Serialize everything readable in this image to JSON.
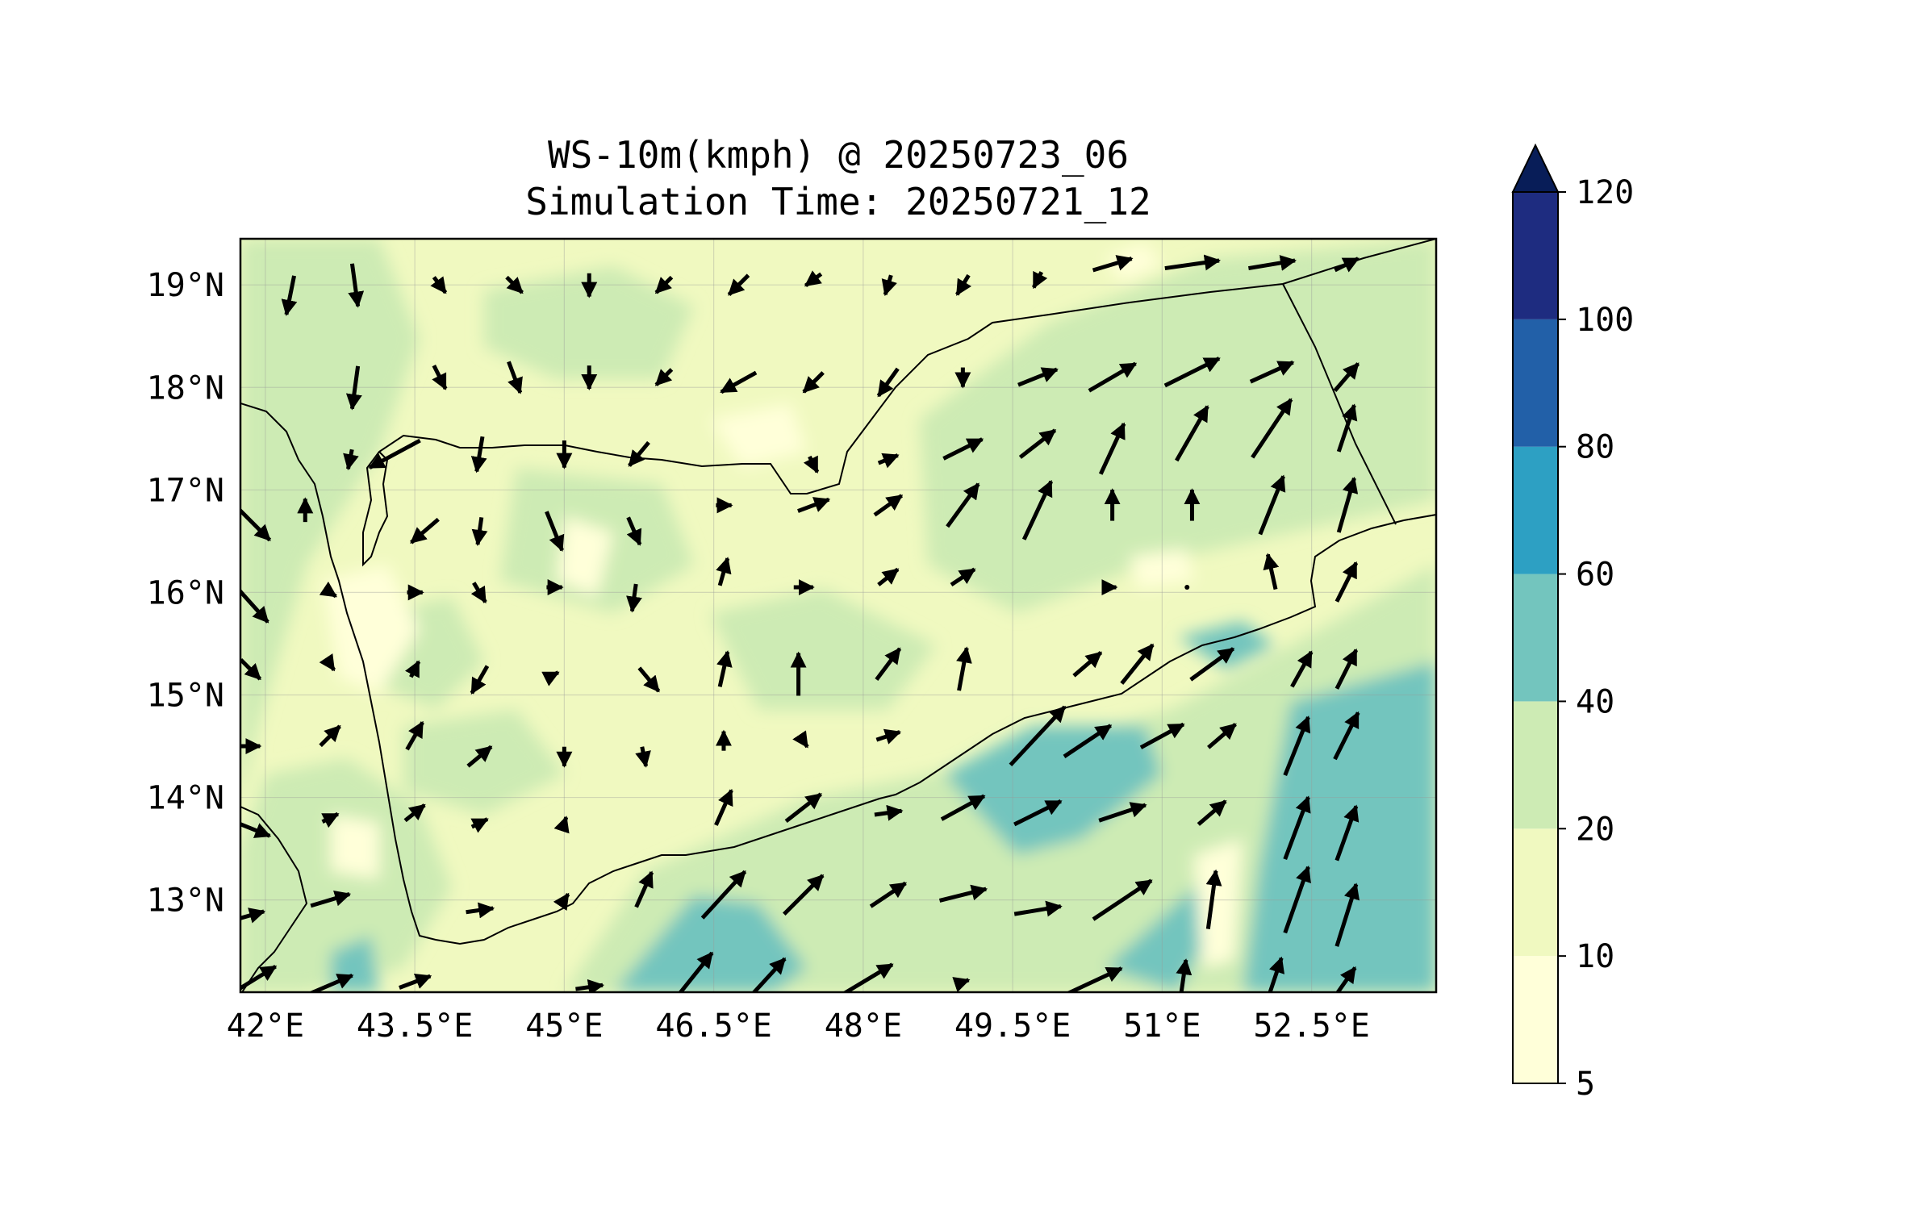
{
  "title": {
    "line1": "WS-10m(kmph) @ 20250723_06",
    "line2": "Simulation Time: 20250721_12"
  },
  "map": {
    "lon_range": [
      41.75,
      53.75
    ],
    "lat_range": [
      12.1,
      19.45
    ],
    "lon_ticks": [
      {
        "v": 42.0,
        "label": "42°E"
      },
      {
        "v": 43.5,
        "label": "43.5°E"
      },
      {
        "v": 45.0,
        "label": "45°E"
      },
      {
        "v": 46.5,
        "label": "46.5°E"
      },
      {
        "v": 48.0,
        "label": "48°E"
      },
      {
        "v": 49.5,
        "label": "49.5°E"
      },
      {
        "v": 51.0,
        "label": "51°E"
      },
      {
        "v": 52.5,
        "label": "52.5°E"
      }
    ],
    "lat_ticks": [
      {
        "v": 19,
        "label": "19°N"
      },
      {
        "v": 18,
        "label": "18°N"
      },
      {
        "v": 17,
        "label": "17°N"
      },
      {
        "v": 16,
        "label": "16°N"
      },
      {
        "v": 15,
        "label": "15°N"
      },
      {
        "v": 14,
        "label": "14°N"
      },
      {
        "v": 13,
        "label": "13°N"
      }
    ],
    "grid": true
  },
  "colorbar": {
    "levels": [
      {
        "from": 5,
        "to": 10,
        "color": "#ffffd9"
      },
      {
        "from": 10,
        "to": 20,
        "color": "#f0f9c0"
      },
      {
        "from": 20,
        "to": 40,
        "color": "#cdebb4"
      },
      {
        "from": 40,
        "to": 60,
        "color": "#73c5be"
      },
      {
        "from": 60,
        "to": 80,
        "color": "#2da0c3"
      },
      {
        "from": 80,
        "to": 100,
        "color": "#2260a8"
      },
      {
        "from": 100,
        "to": 120,
        "color": "#1e2c80"
      }
    ],
    "over_color": "#081d58",
    "ticks": [
      {
        "v": 5,
        "label": "5"
      },
      {
        "v": 10,
        "label": "10"
      },
      {
        "v": 20,
        "label": "20"
      },
      {
        "v": 40,
        "label": "40"
      },
      {
        "v": 60,
        "label": "60"
      },
      {
        "v": 80,
        "label": "80"
      },
      {
        "v": 100,
        "label": "100"
      },
      {
        "v": 120,
        "label": "120"
      }
    ],
    "extend": "max"
  },
  "chart_data": {
    "type": "heatmap",
    "variable": "WS-10m(kmph)",
    "description_levels": [
      5,
      10,
      20,
      40,
      60,
      80,
      100,
      120
    ],
    "wind_vectors": [
      {
        "lon": 42.25,
        "lat": 18.9,
        "u": -4,
        "v": -20
      },
      {
        "lon": 42.9,
        "lat": 19.0,
        "u": 3,
        "v": -22
      },
      {
        "lon": 43.75,
        "lat": 19.0,
        "u": 6,
        "v": -8
      },
      {
        "lon": 44.5,
        "lat": 19.0,
        "u": 8,
        "v": -8
      },
      {
        "lon": 45.25,
        "lat": 19.0,
        "u": 0,
        "v": -12
      },
      {
        "lon": 46.0,
        "lat": 19.0,
        "u": -8,
        "v": -8
      },
      {
        "lon": 46.75,
        "lat": 19.0,
        "u": -10,
        "v": -10
      },
      {
        "lon": 47.5,
        "lat": 19.05,
        "u": -8,
        "v": -6
      },
      {
        "lon": 48.25,
        "lat": 19.0,
        "u": -3,
        "v": -10
      },
      {
        "lon": 49.0,
        "lat": 19.0,
        "u": -6,
        "v": -10
      },
      {
        "lon": 49.75,
        "lat": 19.05,
        "u": -4,
        "v": -8
      },
      {
        "lon": 50.5,
        "lat": 19.2,
        "u": 20,
        "v": 6
      },
      {
        "lon": 51.3,
        "lat": 19.2,
        "u": 28,
        "v": 4
      },
      {
        "lon": 52.1,
        "lat": 19.2,
        "u": 24,
        "v": 4
      },
      {
        "lon": 52.85,
        "lat": 19.2,
        "u": 12,
        "v": 6
      },
      {
        "lon": 42.9,
        "lat": 18.0,
        "u": -3,
        "v": -22
      },
      {
        "lon": 43.75,
        "lat": 18.1,
        "u": 6,
        "v": -12
      },
      {
        "lon": 44.5,
        "lat": 18.1,
        "u": 6,
        "v": -16
      },
      {
        "lon": 45.25,
        "lat": 18.1,
        "u": 0,
        "v": -12
      },
      {
        "lon": 46.0,
        "lat": 18.1,
        "u": -8,
        "v": -8
      },
      {
        "lon": 46.75,
        "lat": 18.05,
        "u": -18,
        "v": -10
      },
      {
        "lon": 47.5,
        "lat": 18.05,
        "u": -10,
        "v": -10
      },
      {
        "lon": 48.25,
        "lat": 18.05,
        "u": -10,
        "v": -14
      },
      {
        "lon": 49.0,
        "lat": 18.1,
        "u": 0,
        "v": -10
      },
      {
        "lon": 49.75,
        "lat": 18.1,
        "u": 20,
        "v": 8
      },
      {
        "lon": 50.5,
        "lat": 18.1,
        "u": 24,
        "v": 14
      },
      {
        "lon": 51.3,
        "lat": 18.15,
        "u": 28,
        "v": 14
      },
      {
        "lon": 52.1,
        "lat": 18.15,
        "u": 22,
        "v": 10
      },
      {
        "lon": 52.85,
        "lat": 18.1,
        "u": 12,
        "v": 14
      },
      {
        "lon": 42.85,
        "lat": 17.3,
        "u": -2,
        "v": -10
      },
      {
        "lon": 43.3,
        "lat": 17.35,
        "u": -26,
        "v": -14
      },
      {
        "lon": 44.15,
        "lat": 17.35,
        "u": -3,
        "v": -18
      },
      {
        "lon": 45.0,
        "lat": 17.35,
        "u": 0,
        "v": -14
      },
      {
        "lon": 45.75,
        "lat": 17.35,
        "u": -10,
        "v": -12
      },
      {
        "lon": 47.5,
        "lat": 17.25,
        "u": 4,
        "v": -8
      },
      {
        "lon": 48.25,
        "lat": 17.3,
        "u": 10,
        "v": 4
      },
      {
        "lon": 49.0,
        "lat": 17.4,
        "u": 20,
        "v": 10
      },
      {
        "lon": 49.75,
        "lat": 17.45,
        "u": 18,
        "v": 14
      },
      {
        "lon": 50.5,
        "lat": 17.4,
        "u": 12,
        "v": 26
      },
      {
        "lon": 51.3,
        "lat": 17.55,
        "u": 16,
        "v": 28
      },
      {
        "lon": 52.1,
        "lat": 17.6,
        "u": 20,
        "v": 30
      },
      {
        "lon": 52.85,
        "lat": 17.6,
        "u": 8,
        "v": 24
      },
      {
        "lon": 42.4,
        "lat": 16.8,
        "u": 0,
        "v": 12
      },
      {
        "lon": 43.6,
        "lat": 16.6,
        "u": -14,
        "v": -12
      },
      {
        "lon": 44.15,
        "lat": 16.6,
        "u": -2,
        "v": -14
      },
      {
        "lon": 44.9,
        "lat": 16.6,
        "u": 8,
        "v": -20
      },
      {
        "lon": 45.7,
        "lat": 16.6,
        "u": 6,
        "v": -14
      },
      {
        "lon": 46.6,
        "lat": 16.85,
        "u": 8,
        "v": 0
      },
      {
        "lon": 47.5,
        "lat": 16.85,
        "u": 16,
        "v": 6
      },
      {
        "lon": 48.25,
        "lat": 16.85,
        "u": 14,
        "v": 10
      },
      {
        "lon": 49.0,
        "lat": 16.85,
        "u": 16,
        "v": 22
      },
      {
        "lon": 49.75,
        "lat": 16.8,
        "u": 14,
        "v": 30
      },
      {
        "lon": 50.5,
        "lat": 16.85,
        "u": 0,
        "v": 16
      },
      {
        "lon": 51.3,
        "lat": 16.85,
        "u": 0,
        "v": 16
      },
      {
        "lon": 52.1,
        "lat": 16.85,
        "u": 12,
        "v": 30
      },
      {
        "lon": 52.85,
        "lat": 16.85,
        "u": 8,
        "v": 28
      },
      {
        "lon": 41.85,
        "lat": 16.7,
        "u": 20,
        "v": -20
      },
      {
        "lon": 41.85,
        "lat": 15.9,
        "u": 18,
        "v": -20
      },
      {
        "lon": 42.65,
        "lat": 16.0,
        "u": 6,
        "v": -4
      },
      {
        "lon": 43.5,
        "lat": 16.0,
        "u": 8,
        "v": 0
      },
      {
        "lon": 44.15,
        "lat": 16.0,
        "u": 6,
        "v": -10
      },
      {
        "lon": 44.9,
        "lat": 16.05,
        "u": 8,
        "v": 0
      },
      {
        "lon": 45.7,
        "lat": 15.95,
        "u": -2,
        "v": -14
      },
      {
        "lon": 46.6,
        "lat": 16.2,
        "u": 4,
        "v": 14
      },
      {
        "lon": 47.4,
        "lat": 16.05,
        "u": 10,
        "v": 0
      },
      {
        "lon": 48.25,
        "lat": 16.15,
        "u": 10,
        "v": 8
      },
      {
        "lon": 49.0,
        "lat": 16.15,
        "u": 12,
        "v": 8
      },
      {
        "lon": 50.5,
        "lat": 16.05,
        "u": 4,
        "v": 0
      },
      {
        "lon": 51.25,
        "lat": 16.05,
        "u": 0,
        "v": 0
      },
      {
        "lon": 52.1,
        "lat": 16.2,
        "u": -4,
        "v": 18
      },
      {
        "lon": 52.85,
        "lat": 16.1,
        "u": 10,
        "v": 20
      },
      {
        "lon": 41.85,
        "lat": 15.25,
        "u": 10,
        "v": -10
      },
      {
        "lon": 42.65,
        "lat": 15.3,
        "u": 4,
        "v": -6
      },
      {
        "lon": 43.5,
        "lat": 15.25,
        "u": 4,
        "v": 8
      },
      {
        "lon": 44.15,
        "lat": 15.15,
        "u": -8,
        "v": -14
      },
      {
        "lon": 44.9,
        "lat": 15.2,
        "u": 4,
        "v": 2
      },
      {
        "lon": 45.85,
        "lat": 15.15,
        "u": 10,
        "v": -12
      },
      {
        "lon": 46.6,
        "lat": 15.25,
        "u": 4,
        "v": 18
      },
      {
        "lon": 47.35,
        "lat": 15.2,
        "u": 0,
        "v": 22
      },
      {
        "lon": 48.25,
        "lat": 15.3,
        "u": 12,
        "v": 16
      },
      {
        "lon": 49.0,
        "lat": 15.25,
        "u": 4,
        "v": 22
      },
      {
        "lon": 49.75,
        "lat": 14.6,
        "u": 28,
        "v": 30
      },
      {
        "lon": 50.25,
        "lat": 15.3,
        "u": 14,
        "v": 12
      },
      {
        "lon": 50.75,
        "lat": 15.3,
        "u": 16,
        "v": 20
      },
      {
        "lon": 51.5,
        "lat": 15.3,
        "u": 22,
        "v": 16
      },
      {
        "lon": 52.4,
        "lat": 15.25,
        "u": 10,
        "v": 18
      },
      {
        "lon": 52.85,
        "lat": 15.25,
        "u": 10,
        "v": 20
      },
      {
        "lon": 41.85,
        "lat": 14.5,
        "u": 10,
        "v": 0
      },
      {
        "lon": 42.65,
        "lat": 14.6,
        "u": 10,
        "v": 10
      },
      {
        "lon": 43.5,
        "lat": 14.6,
        "u": 8,
        "v": 14
      },
      {
        "lon": 44.15,
        "lat": 14.4,
        "u": 12,
        "v": 10
      },
      {
        "lon": 45.0,
        "lat": 14.4,
        "u": 0,
        "v": -10
      },
      {
        "lon": 45.8,
        "lat": 14.4,
        "u": 2,
        "v": -10
      },
      {
        "lon": 46.6,
        "lat": 14.55,
        "u": 0,
        "v": 10
      },
      {
        "lon": 47.4,
        "lat": 14.55,
        "u": 4,
        "v": -6
      },
      {
        "lon": 48.25,
        "lat": 14.6,
        "u": 12,
        "v": 4
      },
      {
        "lon": 50.25,
        "lat": 14.55,
        "u": 24,
        "v": 16
      },
      {
        "lon": 51.0,
        "lat": 14.6,
        "u": 22,
        "v": 12
      },
      {
        "lon": 51.6,
        "lat": 14.6,
        "u": 14,
        "v": 12
      },
      {
        "lon": 52.35,
        "lat": 14.5,
        "u": 12,
        "v": 30
      },
      {
        "lon": 52.85,
        "lat": 14.6,
        "u": 12,
        "v": 24
      },
      {
        "lon": 41.85,
        "lat": 13.7,
        "u": 20,
        "v": -8
      },
      {
        "lon": 42.65,
        "lat": 13.8,
        "u": 8,
        "v": 4
      },
      {
        "lon": 43.5,
        "lat": 13.85,
        "u": 10,
        "v": 8
      },
      {
        "lon": 44.15,
        "lat": 13.75,
        "u": 8,
        "v": 4
      },
      {
        "lon": 45.0,
        "lat": 13.75,
        "u": 2,
        "v": 6
      },
      {
        "lon": 46.6,
        "lat": 13.9,
        "u": 8,
        "v": 18
      },
      {
        "lon": 47.4,
        "lat": 13.9,
        "u": 18,
        "v": 14
      },
      {
        "lon": 48.25,
        "lat": 13.85,
        "u": 14,
        "v": 2
      },
      {
        "lon": 49.0,
        "lat": 13.9,
        "u": 22,
        "v": 12
      },
      {
        "lon": 49.75,
        "lat": 13.85,
        "u": 24,
        "v": 12
      },
      {
        "lon": 50.6,
        "lat": 13.85,
        "u": 24,
        "v": 8
      },
      {
        "lon": 51.5,
        "lat": 13.85,
        "u": 14,
        "v": 12
      },
      {
        "lon": 52.35,
        "lat": 13.7,
        "u": 12,
        "v": 32
      },
      {
        "lon": 52.85,
        "lat": 13.65,
        "u": 10,
        "v": 28
      },
      {
        "lon": 41.85,
        "lat": 12.85,
        "u": 14,
        "v": 4
      },
      {
        "lon": 42.65,
        "lat": 13.0,
        "u": 20,
        "v": 6
      },
      {
        "lon": 44.15,
        "lat": 12.9,
        "u": 14,
        "v": 2
      },
      {
        "lon": 45.0,
        "lat": 13.0,
        "u": 4,
        "v": 6
      },
      {
        "lon": 45.8,
        "lat": 13.1,
        "u": 8,
        "v": 18
      },
      {
        "lon": 46.6,
        "lat": 13.05,
        "u": 22,
        "v": 24
      },
      {
        "lon": 47.4,
        "lat": 13.05,
        "u": 20,
        "v": 20
      },
      {
        "lon": 48.25,
        "lat": 13.05,
        "u": 18,
        "v": 12
      },
      {
        "lon": 49.0,
        "lat": 13.05,
        "u": 24,
        "v": 6
      },
      {
        "lon": 49.75,
        "lat": 12.9,
        "u": 24,
        "v": 4
      },
      {
        "lon": 50.6,
        "lat": 13.0,
        "u": 30,
        "v": 20
      },
      {
        "lon": 51.5,
        "lat": 13.0,
        "u": 4,
        "v": 30
      },
      {
        "lon": 52.35,
        "lat": 13.0,
        "u": 12,
        "v": 34
      },
      {
        "lon": 52.85,
        "lat": 12.85,
        "u": 10,
        "v": 32
      },
      {
        "lon": 41.85,
        "lat": 12.2,
        "u": 26,
        "v": 16
      },
      {
        "lon": 42.6,
        "lat": 12.15,
        "u": 28,
        "v": 12
      },
      {
        "lon": 43.5,
        "lat": 12.2,
        "u": 16,
        "v": 6
      },
      {
        "lon": 45.25,
        "lat": 12.15,
        "u": 14,
        "v": 2
      },
      {
        "lon": 46.25,
        "lat": 12.2,
        "u": 24,
        "v": 30
      },
      {
        "lon": 47.0,
        "lat": 12.2,
        "u": 22,
        "v": 24
      },
      {
        "lon": 48.0,
        "lat": 12.2,
        "u": 30,
        "v": 18
      },
      {
        "lon": 49.0,
        "lat": 12.2,
        "u": 6,
        "v": 2
      },
      {
        "lon": 50.3,
        "lat": 12.2,
        "u": 30,
        "v": 14
      },
      {
        "lon": 51.2,
        "lat": 12.15,
        "u": 4,
        "v": 28
      },
      {
        "lon": 52.1,
        "lat": 12.15,
        "u": 10,
        "v": 30
      },
      {
        "lon": 52.8,
        "lat": 12.15,
        "u": 14,
        "v": 20
      }
    ]
  }
}
